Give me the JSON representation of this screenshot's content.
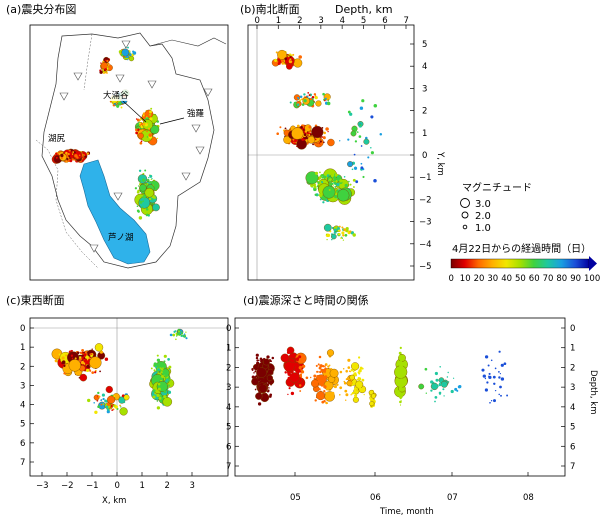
{
  "panels": {
    "a": {
      "title": "(a)震央分布図",
      "labels": [
        "大涌谷",
        "強羅",
        "湖尻",
        "芦ノ湖"
      ]
    },
    "b": {
      "title": "(b)南北断面",
      "depth_axis_label": "Depth, km",
      "y_axis_label": "Y, km"
    },
    "c": {
      "title": "(c)東西断面",
      "x_axis_label": "X, km"
    },
    "d": {
      "title": "(d)震源深さと時間の関係",
      "x_axis_label": "Time, month",
      "y_axis_label": "Depth, km"
    }
  },
  "legend": {
    "magnitude_title": "マグニチュード",
    "magnitude_items": [
      "3.0",
      "2.0",
      "1.0"
    ],
    "time_title": "4月22日からの経過時間（日）",
    "colorbar_ticks": [
      "0",
      "10",
      "20",
      "30",
      "40",
      "50",
      "60",
      "70",
      "80",
      "90",
      "100"
    ],
    "colorbar_colors": [
      "#7a0000",
      "#e00000",
      "#ff6a00",
      "#ffb000",
      "#f2e600",
      "#a6e000",
      "#3fd23f",
      "#1ec8a0",
      "#1a9fe0",
      "#1a4fd8",
      "#0000a0"
    ]
  },
  "chart_data": [
    {
      "type": "scatter",
      "title": "(b)南北断面",
      "xlabel": "Depth, km",
      "ylabel": "Y, km",
      "xlim": [
        0,
        7
      ],
      "ylim": [
        -5,
        5.5
      ],
      "x_ticks": [
        0,
        1,
        2,
        3,
        4,
        5,
        6,
        7
      ],
      "y_ticks": [
        5,
        4,
        3,
        2,
        1,
        0,
        -1,
        -2,
        -3,
        -4,
        -5
      ]
    },
    {
      "type": "scatter",
      "title": "(c)東西断面",
      "xlabel": "X, km",
      "ylabel": "",
      "xlim": [
        -4,
        4
      ],
      "ylim": [
        7,
        -0.2
      ],
      "x_ticks": [
        -3,
        -2,
        -1,
        0,
        1,
        2,
        3
      ],
      "y_ticks": [
        0,
        1,
        2,
        3,
        4,
        5,
        6,
        7
      ]
    },
    {
      "type": "scatter",
      "title": "(d)震源深さと時間の関係",
      "xlabel": "Time, month",
      "ylabel": "Depth, km",
      "x_categories": [
        "05",
        "06",
        "07",
        "08"
      ],
      "ylim": [
        7,
        -0.2
      ],
      "y_ticks": [
        0,
        1,
        2,
        3,
        4,
        5,
        6,
        7
      ]
    }
  ]
}
